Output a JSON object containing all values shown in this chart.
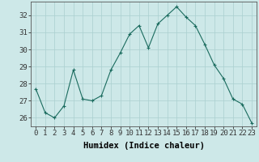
{
  "x": [
    0,
    1,
    2,
    3,
    4,
    5,
    6,
    7,
    8,
    9,
    10,
    11,
    12,
    13,
    14,
    15,
    16,
    17,
    18,
    19,
    20,
    21,
    22,
    23
  ],
  "y": [
    27.7,
    26.3,
    26.0,
    26.7,
    28.8,
    27.1,
    27.0,
    27.3,
    28.8,
    29.8,
    30.9,
    31.4,
    30.1,
    31.5,
    32.0,
    32.5,
    31.9,
    31.4,
    30.3,
    29.1,
    28.3,
    27.1,
    26.8,
    25.7
  ],
  "line_color": "#1a6b5e",
  "marker": "+",
  "marker_size": 3,
  "marker_linewidth": 0.8,
  "line_width": 0.8,
  "bg_color": "#cde8e8",
  "grid_color": "#aacfcf",
  "xlabel": "Humidex (Indice chaleur)",
  "xlim": [
    -0.5,
    23.5
  ],
  "ylim": [
    25.5,
    32.8
  ],
  "yticks": [
    26,
    27,
    28,
    29,
    30,
    31,
    32
  ],
  "xticks": [
    0,
    1,
    2,
    3,
    4,
    5,
    6,
    7,
    8,
    9,
    10,
    11,
    12,
    13,
    14,
    15,
    16,
    17,
    18,
    19,
    20,
    21,
    22,
    23
  ],
  "tick_label_fontsize": 6.5,
  "xlabel_fontsize": 7.5,
  "tick_color": "#333333",
  "spine_color": "#555555"
}
